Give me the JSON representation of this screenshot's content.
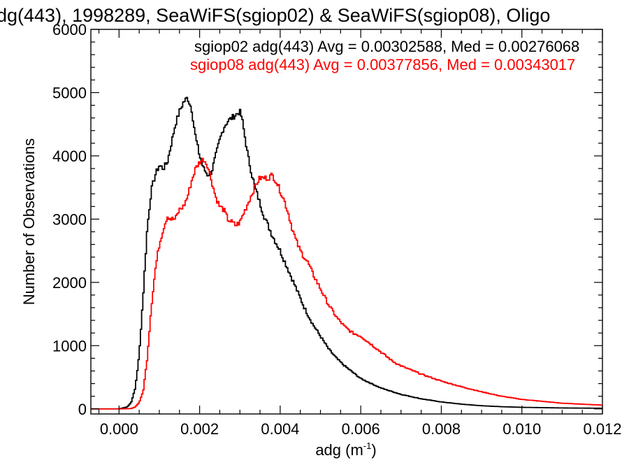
{
  "chart_data": {
    "type": "line",
    "title": "dg(443), 1998289, SeaWiFS(sgiop02) & SeaWiFS(sgiop08), Oligo",
    "xlabel": "adg (m",
    "xlabel_sup": "-1",
    "xlabel_end": ")",
    "ylabel": "Number of Observations",
    "xlim": [
      -0.0007,
      0.012
    ],
    "ylim": [
      -80,
      6000
    ],
    "xticks": [
      0.0,
      0.002,
      0.004,
      0.006,
      0.008,
      0.01,
      0.012
    ],
    "xtick_labels": [
      "0.000",
      "0.002",
      "0.004",
      "0.006",
      "0.008",
      "0.010",
      "0.012"
    ],
    "yticks": [
      0,
      1000,
      2000,
      3000,
      4000,
      5000,
      6000
    ],
    "ytick_labels": [
      "0",
      "1000",
      "2000",
      "3000",
      "4000",
      "5000",
      "6000"
    ],
    "grid": false,
    "legend": "top-right",
    "annotations": [
      {
        "text": "sgiop02 adg(443) Avg = 0.00302588, Med = 0.00276068",
        "color": "#000000"
      },
      {
        "text": "sgiop08 adg(443) Avg = 0.00377856, Med = 0.00343017",
        "color": "#ff0000"
      }
    ],
    "series": [
      {
        "color": "#000000",
        "x": [
          -0.0007,
          0.0,
          0.0002,
          0.0003,
          0.0004,
          0.0005,
          0.0006,
          0.0007,
          0.0008,
          0.0009,
          0.001,
          0.0011,
          0.0012,
          0.0013,
          0.0014,
          0.0015,
          0.0016,
          0.0017,
          0.0018,
          0.0019,
          0.002,
          0.0021,
          0.0022,
          0.0023,
          0.0024,
          0.0025,
          0.0026,
          0.0027,
          0.0028,
          0.0029,
          0.003,
          0.00305,
          0.0031,
          0.0032,
          0.0033,
          0.0034,
          0.0035,
          0.0036,
          0.0037,
          0.0038,
          0.004,
          0.0042,
          0.0044,
          0.0046,
          0.0048,
          0.005,
          0.0052,
          0.0054,
          0.0056,
          0.0058,
          0.006,
          0.0065,
          0.007,
          0.0075,
          0.008,
          0.0085,
          0.009,
          0.0095,
          0.01,
          0.011,
          0.012
        ],
        "y": [
          0,
          0,
          30,
          100,
          320,
          850,
          1800,
          2850,
          3450,
          3700,
          3850,
          3800,
          3900,
          4200,
          4500,
          4700,
          4850,
          4920,
          4750,
          4300,
          4000,
          3800,
          3700,
          3750,
          4000,
          4250,
          4450,
          4550,
          4600,
          4650,
          4700,
          4600,
          4400,
          4000,
          3700,
          3450,
          3250,
          3050,
          2900,
          2750,
          2500,
          2200,
          1900,
          1600,
          1350,
          1150,
          950,
          800,
          680,
          580,
          480,
          330,
          230,
          160,
          110,
          75,
          50,
          35,
          25,
          15,
          10
        ]
      },
      {
        "color": "#ff0000",
        "x": [
          -0.0007,
          0.0,
          0.0003,
          0.0004,
          0.0005,
          0.0006,
          0.0007,
          0.0008,
          0.0009,
          0.001,
          0.0011,
          0.0012,
          0.0013,
          0.0014,
          0.0015,
          0.0016,
          0.0017,
          0.0018,
          0.0019,
          0.002,
          0.0021,
          0.0022,
          0.0023,
          0.0024,
          0.0025,
          0.0026,
          0.0027,
          0.0028,
          0.0029,
          0.003,
          0.0031,
          0.0032,
          0.0033,
          0.0034,
          0.0035,
          0.0036,
          0.0037,
          0.0038,
          0.0039,
          0.004,
          0.0041,
          0.0042,
          0.0043,
          0.0044,
          0.0045,
          0.0046,
          0.0047,
          0.0048,
          0.005,
          0.0052,
          0.0054,
          0.0056,
          0.0058,
          0.006,
          0.0062,
          0.0064,
          0.0066,
          0.0068,
          0.007,
          0.0075,
          0.008,
          0.0085,
          0.009,
          0.0095,
          0.01,
          0.011,
          0.012
        ],
        "y": [
          0,
          0,
          5,
          30,
          100,
          280,
          800,
          1600,
          2200,
          2600,
          2850,
          3050,
          3000,
          3000,
          3150,
          3200,
          3350,
          3600,
          3800,
          3900,
          3950,
          3850,
          3600,
          3350,
          3200,
          3150,
          3000,
          2950,
          2900,
          2950,
          3100,
          3250,
          3400,
          3550,
          3650,
          3650,
          3650,
          3700,
          3600,
          3450,
          3300,
          3100,
          2850,
          2650,
          2500,
          2400,
          2300,
          2150,
          1900,
          1650,
          1450,
          1300,
          1200,
          1150,
          1050,
          950,
          850,
          750,
          680,
          550,
          440,
          350,
          270,
          200,
          150,
          90,
          60
        ]
      }
    ]
  }
}
